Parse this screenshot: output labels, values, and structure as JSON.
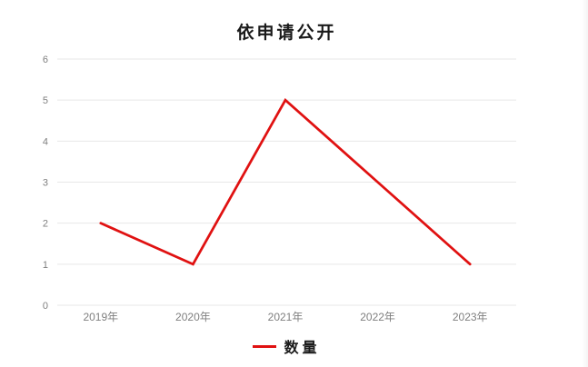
{
  "chart_data": {
    "type": "line",
    "title": "依申请公开",
    "categories": [
      "2019年",
      "2020年",
      "2021年",
      "2022年",
      "2023年"
    ],
    "series": [
      {
        "name": "数量",
        "values": [
          2,
          1,
          5,
          3,
          1
        ],
        "color": "#e01111"
      }
    ],
    "xlabel": "",
    "ylabel": "",
    "ylim": [
      0,
      6
    ],
    "yticks": [
      0,
      1,
      2,
      3,
      4,
      5,
      6
    ],
    "grid": true,
    "gridline_color": "#e7e7e7",
    "tick_label_color": "#7f7f7f",
    "legend_position": "bottom"
  }
}
